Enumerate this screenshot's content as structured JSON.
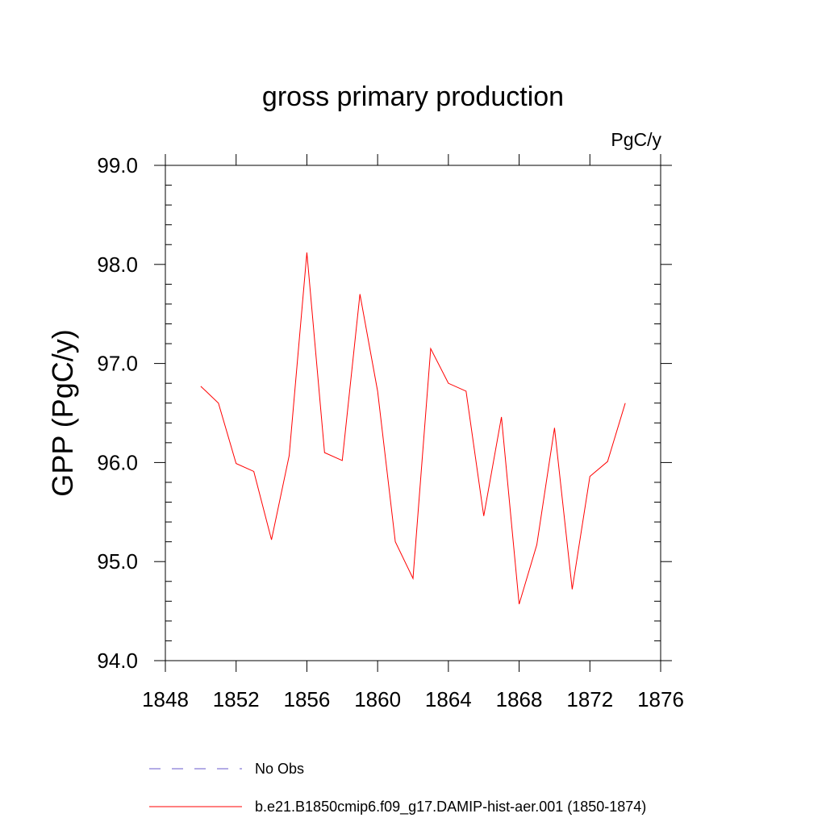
{
  "chart_data": {
    "type": "line",
    "title": "gross primary production",
    "units_label": "PgC/y",
    "ylabel": "GPP  (PgC/y)",
    "xlabel": "",
    "xlim": [
      1848,
      1876
    ],
    "ylim": [
      94.0,
      99.0
    ],
    "x_ticks": [
      1848,
      1852,
      1856,
      1860,
      1864,
      1868,
      1872,
      1876
    ],
    "x_tick_labels": [
      "1848",
      "1852",
      "1856",
      "1860",
      "1864",
      "1868",
      "1872",
      "1876"
    ],
    "y_ticks": [
      94.0,
      95.0,
      96.0,
      97.0,
      98.0,
      99.0
    ],
    "y_tick_labels": [
      "94.0",
      "95.0",
      "96.0",
      "97.0",
      "98.0",
      "99.0"
    ],
    "grid": false,
    "legend_position": "bottom",
    "series": [
      {
        "name": "b.e21.B1850cmip6.f09_g17.DAMIP-hist-aer.001 (1850-1874)",
        "color": "#ff0000",
        "dash": "solid",
        "x": [
          1850,
          1851,
          1852,
          1853,
          1854,
          1855,
          1856,
          1857,
          1858,
          1859,
          1860,
          1861,
          1862,
          1863,
          1864,
          1865,
          1866,
          1867,
          1868,
          1869,
          1870,
          1871,
          1872,
          1873,
          1874
        ],
        "y": [
          96.77,
          96.6,
          95.99,
          95.91,
          95.22,
          96.07,
          98.12,
          96.1,
          96.02,
          97.7,
          96.72,
          95.2,
          94.83,
          97.15,
          96.8,
          96.72,
          95.46,
          96.46,
          94.57,
          95.17,
          96.35,
          94.72,
          95.86,
          96.01,
          96.6
        ]
      }
    ],
    "legend": [
      {
        "label": "No Obs",
        "color": "#6a5acd",
        "dash": "dashed"
      },
      {
        "label": "b.e21.B1850cmip6.f09_g17.DAMIP-hist-aer.001 (1850-1874)",
        "color": "#ff0000",
        "dash": "solid"
      }
    ]
  }
}
